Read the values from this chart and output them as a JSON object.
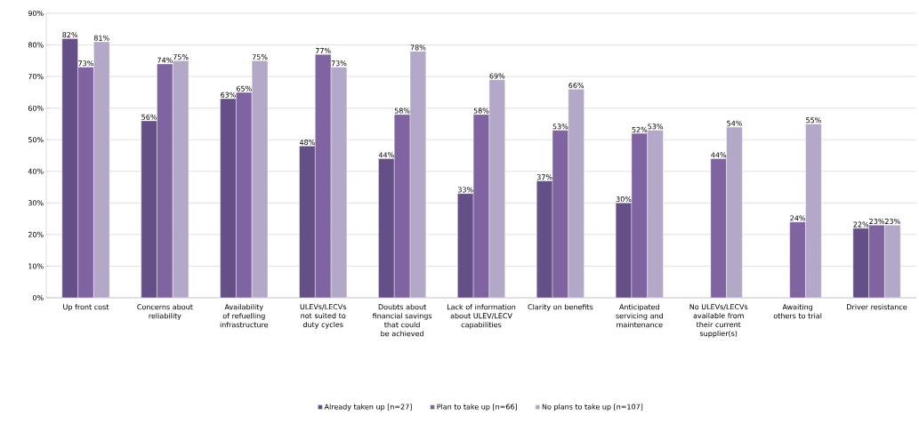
{
  "chart_data": {
    "type": "bar",
    "categories": [
      "Up front cost",
      "Concerns about reliability",
      "Availability of refuelling infrastructure",
      "ULEVs/LECVs not suited to duty cycles",
      "Doubts about financial savings that could be achieved",
      "Lack of information about ULEV/LECV capabilities",
      "Clarity on benefits",
      "Anticipated servicing and maintenance",
      "No ULEVs/LECVs available from their current supplier(s)",
      "Awaiting others to trial",
      "Driver resistance"
    ],
    "series": [
      {
        "name": "Already taken up [n=27]",
        "color": "#654f87",
        "values": [
          82,
          56,
          63,
          48,
          44,
          33,
          37,
          30,
          null,
          null,
          22
        ],
        "value_labels": [
          "82%",
          "56%",
          "63%",
          "48%",
          "44%",
          "33%",
          "37%",
          "30%",
          null,
          null,
          "22%"
        ]
      },
      {
        "name": "Plan to take up [n=66]",
        "color": "#8064a2",
        "values": [
          73,
          74,
          65,
          77,
          58,
          58,
          53,
          52,
          44,
          24,
          23
        ],
        "value_labels": [
          "73%",
          "74%",
          "65%",
          "77%",
          "58%",
          "58%",
          "53%",
          "52%",
          "44%",
          "24%",
          "23%"
        ]
      },
      {
        "name": "No plans to take up [n=107]",
        "color": "#b3a8c8",
        "values": [
          81,
          75,
          75,
          73,
          78,
          69,
          66,
          53,
          54,
          55,
          23
        ],
        "value_labels": [
          "81%",
          "75%",
          "75%",
          "73%",
          "78%",
          "69%",
          "66%",
          "53%",
          "54%",
          "55%",
          "23%"
        ]
      }
    ],
    "ylim": [
      0,
      90
    ],
    "yticks": [
      {
        "value": 0,
        "label": "0%"
      },
      {
        "value": 10,
        "label": "10%"
      },
      {
        "value": 20,
        "label": "20%"
      },
      {
        "value": 30,
        "label": "30%"
      },
      {
        "value": 40,
        "label": "40%"
      },
      {
        "value": 50,
        "label": "50%"
      },
      {
        "value": 60,
        "label": "60%"
      },
      {
        "value": 70,
        "label": "70%"
      },
      {
        "value": 80,
        "label": "80%"
      },
      {
        "value": 90,
        "label": "90%"
      }
    ],
    "grid": "y",
    "legend": "bottom"
  }
}
